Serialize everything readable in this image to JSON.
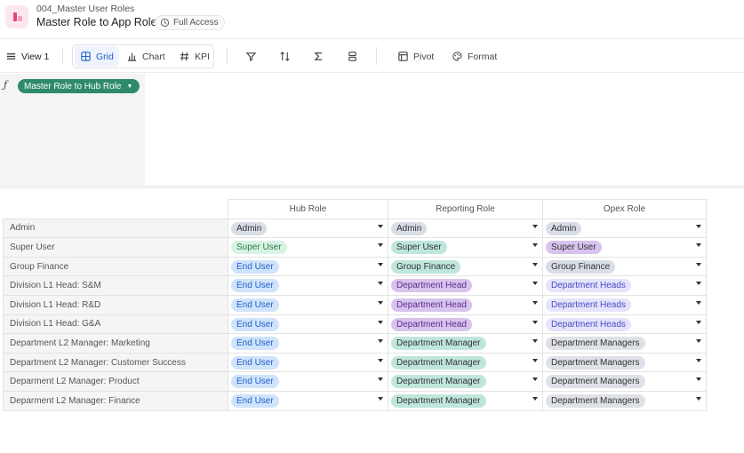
{
  "header": {
    "breadcrumb": "004_Master User Roles",
    "title": "Master Role to App Role",
    "access_label": "Full Access"
  },
  "toolbar": {
    "view_label": "View 1",
    "grid_label": "Grid",
    "chart_label": "Chart",
    "kpi_label": "KPI",
    "pivot_label": "Pivot",
    "format_label": "Format"
  },
  "formula": {
    "pill_label": "Master Role to Hub Role"
  },
  "colors": {
    "accent": "#2461c7",
    "pill_green": "#2e8a6b",
    "chip_admin": "#d9dde6",
    "chip_super_user_hub": "#d7f3e3",
    "chip_end_user": "#cfe3fb",
    "chip_group_finance_rep": "#bfe6dc",
    "chip_department_head": "#d7c3ee",
    "chip_department_heads": "#e4e4fb",
    "chip_department_manager": "#bfe6dc",
    "chip_department_managers": "#dfe1e8"
  },
  "table": {
    "columns": [
      "Hub Role",
      "Reporting Role",
      "Opex Role"
    ],
    "rows": [
      {
        "label": "Admin",
        "hub": "Admin",
        "reporting": "Admin",
        "opex": "Admin"
      },
      {
        "label": "Super User",
        "hub": "Super User",
        "reporting": "Super User",
        "opex": "Super User"
      },
      {
        "label": "Group Finance",
        "hub": "End User",
        "reporting": "Group Finance",
        "opex": "Group Finance"
      },
      {
        "label": "Division L1 Head: S&M",
        "hub": "End User",
        "reporting": "Department Head",
        "opex": "Department Heads"
      },
      {
        "label": "Division L1 Head: R&D",
        "hub": "End User",
        "reporting": "Department Head",
        "opex": "Department Heads"
      },
      {
        "label": "Division L1 Head: G&A",
        "hub": "End User",
        "reporting": "Department Head",
        "opex": "Department Heads"
      },
      {
        "label": "Department L2 Manager: Marketing",
        "hub": "End User",
        "reporting": "Department Manager",
        "opex": "Department Managers"
      },
      {
        "label": "Department L2 Manager: Customer Success",
        "hub": "End User",
        "reporting": "Department Manager",
        "opex": "Department Managers"
      },
      {
        "label": "Deparment L2 Manager: Product",
        "hub": "End User",
        "reporting": "Department Manager",
        "opex": "Department Managers"
      },
      {
        "label": "Deparment L2 Manager: Finance",
        "hub": "End User",
        "reporting": "Department Manager",
        "opex": "Department Managers"
      }
    ]
  }
}
